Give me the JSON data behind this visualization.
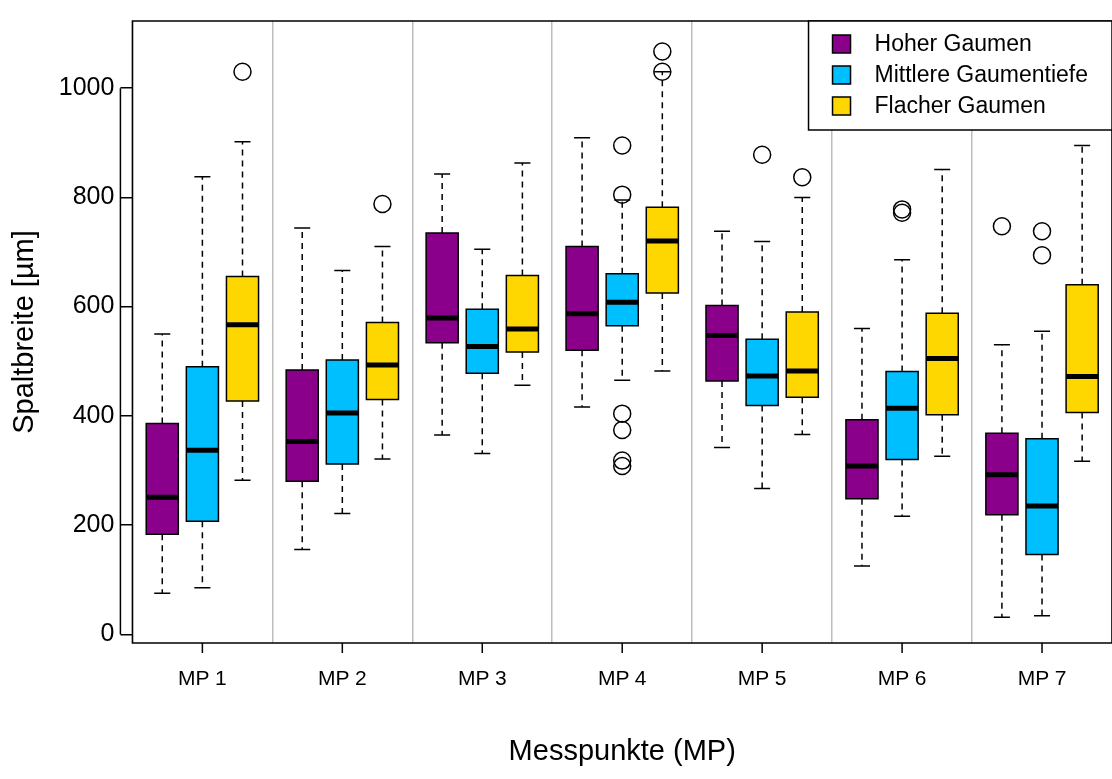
{
  "chart_data": {
    "type": "box",
    "xlabel": "Messpunkte (MP)",
    "ylabel": "Spaltbreite [µm]",
    "categories": [
      "MP 1",
      "MP 2",
      "MP 3",
      "MP 4",
      "MP 5",
      "MP 6",
      "MP 7"
    ],
    "ylim": [
      -16,
      1123
    ],
    "yticks": [
      0,
      200,
      400,
      600,
      800,
      1000
    ],
    "grid": "x",
    "legend": "top right",
    "series": [
      {
        "name": "Hoher Gaumen",
        "color": "#8b008b",
        "boxes": [
          {
            "low": 75,
            "q1": 183,
            "median": 251,
            "q3": 386,
            "high": 550
          },
          {
            "low": 155,
            "q1": 280,
            "median": 353,
            "q3": 484,
            "high": 744
          },
          {
            "low": 365,
            "q1": 534,
            "median": 579,
            "q3": 735,
            "high": 843
          },
          {
            "low": 416,
            "q1": 520,
            "median": 587,
            "q3": 710,
            "high": 909
          },
          {
            "low": 342,
            "q1": 464,
            "median": 547,
            "q3": 602,
            "high": 738
          },
          {
            "low": 125,
            "q1": 248,
            "median": 308,
            "q3": 393,
            "high": 560
          },
          {
            "low": 31,
            "q1": 219,
            "median": 292,
            "q3": 368,
            "high": 530,
            "outliers": [
              747
            ]
          }
        ]
      },
      {
        "name": "Mittlere Gaumentiefe",
        "color": "#00bfff",
        "boxes": [
          {
            "low": 85,
            "q1": 207,
            "median": 337,
            "q3": 490,
            "high": 838
          },
          {
            "low": 221,
            "q1": 312,
            "median": 405,
            "q3": 502,
            "high": 666
          },
          {
            "low": 331,
            "q1": 478,
            "median": 527,
            "q3": 595,
            "high": 705
          },
          {
            "low": 465,
            "q1": 565,
            "median": 608,
            "q3": 660,
            "high": 795,
            "outliers": [
              895,
              805,
              404,
              374,
              318,
              308
            ]
          },
          {
            "low": 267,
            "q1": 419,
            "median": 473,
            "q3": 540,
            "high": 719,
            "outliers": [
              878
            ]
          },
          {
            "low": 216,
            "q1": 320,
            "median": 414,
            "q3": 481,
            "high": 686,
            "outliers": [
              778,
              772
            ]
          },
          {
            "low": 34,
            "q1": 146,
            "median": 235,
            "q3": 358,
            "high": 555,
            "outliers": [
              738,
              694
            ]
          }
        ]
      },
      {
        "name": "Flacher Gaumen",
        "color": "#ffd700",
        "boxes": [
          {
            "low": 282,
            "q1": 427,
            "median": 567,
            "q3": 655,
            "high": 902,
            "outliers": [
              1030
            ]
          },
          {
            "low": 321,
            "q1": 430,
            "median": 493,
            "q3": 571,
            "high": 710,
            "outliers": [
              788
            ]
          },
          {
            "low": 456,
            "q1": 517,
            "median": 559,
            "q3": 657,
            "high": 863
          },
          {
            "low": 482,
            "q1": 625,
            "median": 720,
            "q3": 782,
            "high": 1030,
            "outliers": [
              1067,
              1030
            ]
          },
          {
            "low": 366,
            "q1": 434,
            "median": 482,
            "q3": 590,
            "high": 800,
            "outliers": [
              837
            ]
          },
          {
            "low": 326,
            "q1": 402,
            "median": 505,
            "q3": 588,
            "high": 851
          },
          {
            "low": 317,
            "q1": 406,
            "median": 472,
            "q3": 640,
            "high": 895
          }
        ]
      }
    ]
  }
}
